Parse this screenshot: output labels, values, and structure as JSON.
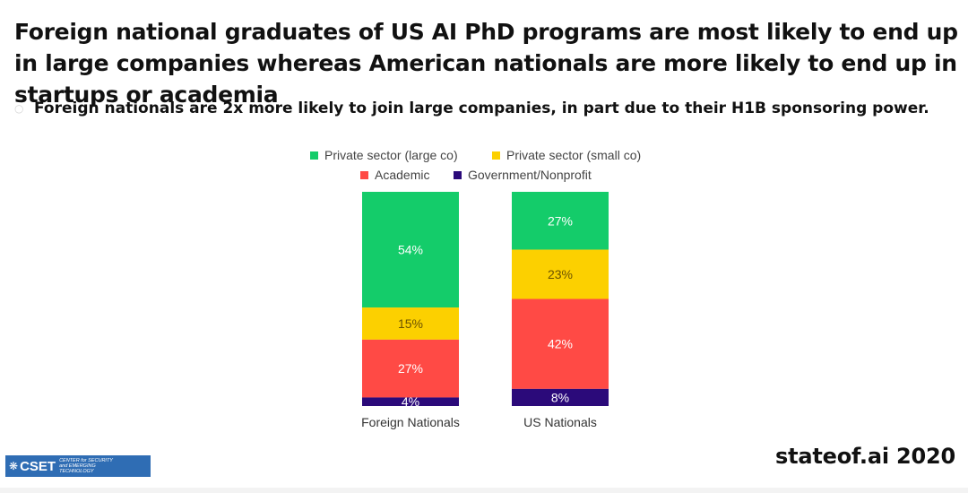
{
  "header": {
    "title": "Foreign national graduates of US AI PhD programs are most likely to end up in large companies whereas American nationals are more likely to end up in startups or academia",
    "subtitle": "Foreign nationals are 2x more likely to join large companies, in part due to their H1B sponsoring power."
  },
  "chart_data": {
    "type": "bar",
    "stacked": true,
    "percent": true,
    "categories": [
      "Foreign Nationals",
      "US Nationals"
    ],
    "series": [
      {
        "name": "Private sector (large co)",
        "color": "#14cc6a",
        "values": [
          54,
          27
        ],
        "labels": [
          "54%",
          "27%"
        ]
      },
      {
        "name": "Private sector (small co)",
        "color": "#fcd000",
        "values": [
          15,
          23
        ],
        "labels": [
          "15%",
          "23%"
        ]
      },
      {
        "name": "Academic",
        "color": "#ff4a45",
        "values": [
          27,
          42
        ],
        "labels": [
          "27%",
          "42%"
        ]
      },
      {
        "name": "Government/Nonprofit",
        "color": "#2b0a7a",
        "values": [
          4,
          8
        ],
        "labels": [
          "4%",
          "8%"
        ]
      }
    ],
    "legend_position": "top",
    "grid": false,
    "ylim": [
      0,
      100
    ]
  },
  "logo": {
    "name": "CSET",
    "tagline": "CENTER for SECURITY and EMERGING TECHNOLOGY"
  },
  "footer": {
    "source": "stateof.ai 2020"
  }
}
